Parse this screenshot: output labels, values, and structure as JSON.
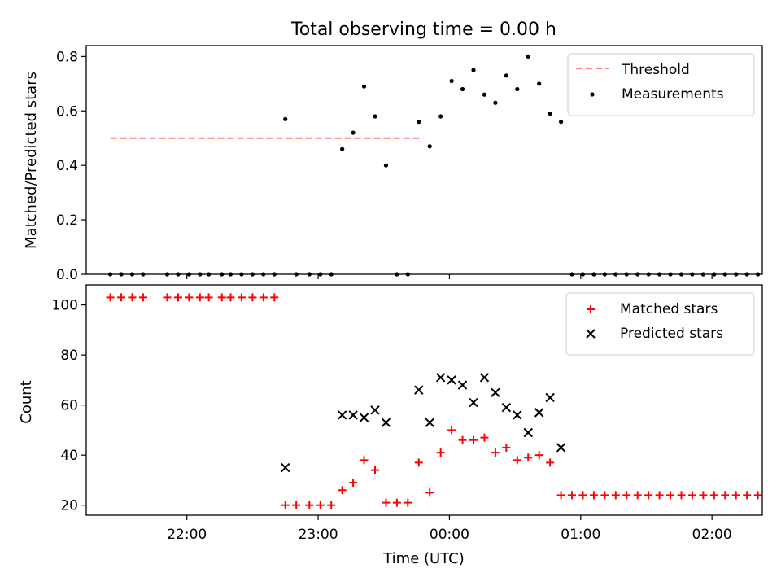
{
  "title": "Total observing time = 0.00 h",
  "chart_data": [
    {
      "type": "line+scatter",
      "panel": "top",
      "ylabel": "Matched/Predicted stars",
      "xlabel": "",
      "ylim": [
        0,
        0.84
      ],
      "yticks": [
        0.0,
        0.2,
        0.4,
        0.6,
        0.8
      ],
      "ytick_labels": [
        "0.0",
        "0.2",
        "0.4",
        "0.6",
        "0.8"
      ],
      "legend_position": "top-right",
      "threshold": {
        "name": "Threshold",
        "color": "#ff7f7f",
        "style": "dashed",
        "value": 0.5,
        "x_range": [
          "21:25",
          "23:48"
        ]
      },
      "series": [
        {
          "name": "Measurements",
          "color": "#000000",
          "marker": "dot",
          "x": [
            "21:25",
            "21:30",
            "21:35",
            "21:40",
            "21:51",
            "21:56",
            "22:01",
            "22:06",
            "22:10",
            "22:16",
            "22:20",
            "22:25",
            "22:30",
            "22:35",
            "22:40",
            "22:45",
            "22:50",
            "22:56",
            "23:01",
            "23:06",
            "23:11",
            "23:16",
            "23:21",
            "23:26",
            "23:31",
            "23:36",
            "23:41",
            "23:46",
            "23:51",
            "23:56",
            "00:01",
            "00:06",
            "00:11",
            "00:16",
            "00:21",
            "00:26",
            "00:31",
            "00:36",
            "00:41",
            "00:46",
            "00:51",
            "00:56",
            "01:01",
            "01:06",
            "01:11",
            "01:16",
            "01:21",
            "01:26",
            "01:31",
            "01:36",
            "01:41",
            "01:46",
            "01:51",
            "01:56",
            "02:01",
            "02:06",
            "02:11",
            "02:16",
            "02:21"
          ],
          "y": [
            0,
            0,
            0,
            0,
            0,
            0,
            0,
            0,
            0,
            0,
            0,
            0,
            0,
            0,
            0,
            0.57,
            0,
            0,
            0,
            0,
            0.46,
            0.52,
            0.69,
            0.58,
            0.4,
            0,
            0,
            0.56,
            0.47,
            0.58,
            0.71,
            0.68,
            0.75,
            0.66,
            0.63,
            0.73,
            0.68,
            0.8,
            0.7,
            0.59,
            0.56,
            0,
            0,
            0,
            0,
            0,
            0,
            0,
            0,
            0,
            0,
            0,
            0,
            0,
            0,
            0,
            0,
            0,
            0
          ]
        }
      ]
    },
    {
      "type": "scatter",
      "panel": "bottom",
      "ylabel": "Count",
      "xlabel": "Time (UTC)",
      "ylim": [
        16,
        108
      ],
      "yticks": [
        20,
        40,
        60,
        80,
        100
      ],
      "ytick_labels": [
        "20",
        "40",
        "60",
        "80",
        "100"
      ],
      "xticks": [
        "22:00",
        "23:00",
        "00:00",
        "01:00",
        "02:00"
      ],
      "legend_position": "top-right",
      "series": [
        {
          "name": "Matched stars",
          "color": "#ff0000",
          "marker": "plus",
          "x": [
            "21:25",
            "21:30",
            "21:35",
            "21:40",
            "21:51",
            "21:56",
            "22:01",
            "22:06",
            "22:10",
            "22:16",
            "22:20",
            "22:25",
            "22:30",
            "22:35",
            "22:40",
            "22:45",
            "22:50",
            "22:56",
            "23:01",
            "23:06",
            "23:11",
            "23:16",
            "23:21",
            "23:26",
            "23:31",
            "23:36",
            "23:41",
            "23:46",
            "23:51",
            "23:56",
            "00:01",
            "00:06",
            "00:11",
            "00:16",
            "00:21",
            "00:26",
            "00:31",
            "00:36",
            "00:41",
            "00:46",
            "00:51",
            "00:56",
            "01:01",
            "01:06",
            "01:11",
            "01:16",
            "01:21",
            "01:26",
            "01:31",
            "01:36",
            "01:41",
            "01:46",
            "01:51",
            "01:56",
            "02:01",
            "02:06",
            "02:11",
            "02:16",
            "02:21"
          ],
          "y": [
            103,
            103,
            103,
            103,
            103,
            103,
            103,
            103,
            103,
            103,
            103,
            103,
            103,
            103,
            103,
            20,
            20,
            20,
            20,
            20,
            26,
            29,
            38,
            34,
            21,
            21,
            21,
            37,
            25,
            41,
            50,
            46,
            46,
            47,
            41,
            43,
            38,
            39,
            40,
            37,
            24,
            24,
            24,
            24,
            24,
            24,
            24,
            24,
            24,
            24,
            24,
            24,
            24,
            24,
            24,
            24,
            24,
            24,
            24
          ]
        },
        {
          "name": "Predicted stars",
          "color": "#000000",
          "marker": "x",
          "x": [
            "22:45",
            "23:11",
            "23:16",
            "23:21",
            "23:26",
            "23:31",
            "23:46",
            "23:51",
            "23:56",
            "00:01",
            "00:06",
            "00:11",
            "00:16",
            "00:21",
            "00:26",
            "00:31",
            "00:36",
            "00:41",
            "00:46",
            "00:51"
          ],
          "y": [
            35,
            56,
            56,
            55,
            58,
            53,
            66,
            53,
            71,
            70,
            68,
            61,
            71,
            65,
            59,
            56,
            49,
            57,
            63,
            43
          ]
        }
      ]
    }
  ]
}
